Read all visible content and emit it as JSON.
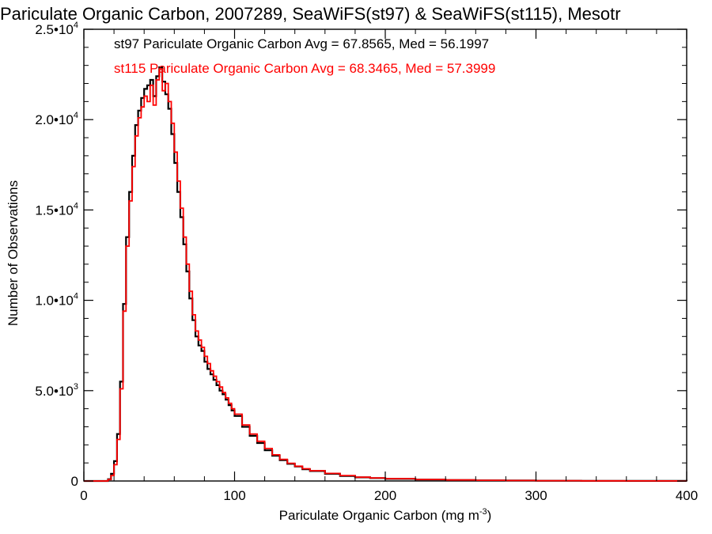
{
  "chart_data": {
    "type": "line",
    "title": "Pariculate Organic Carbon, 2007289, SeaWiFS(st97) & SeaWiFS(st115), Mesotr",
    "xlabel": "Pariculate Organic Carbon (mg m",
    "xlabel_sup": "-3",
    "xlabel_close": ")",
    "ylabel": "Number of Observations",
    "xlim": [
      0,
      400
    ],
    "ylim": [
      0,
      25000
    ],
    "x_ticks": [
      {
        "value": 0,
        "label": "0"
      },
      {
        "value": 100,
        "label": "100"
      },
      {
        "value": 200,
        "label": "200"
      },
      {
        "value": 300,
        "label": "300"
      },
      {
        "value": 400,
        "label": "400"
      }
    ],
    "y_ticks": [
      {
        "value": 0,
        "mant": "0",
        "exp": ""
      },
      {
        "value": 5000,
        "mant": "5.0•10",
        "exp": "3"
      },
      {
        "value": 10000,
        "mant": "1.0•10",
        "exp": "4"
      },
      {
        "value": 15000,
        "mant": "1.5•10",
        "exp": "4"
      },
      {
        "value": 20000,
        "mant": "2.0•10",
        "exp": "4"
      },
      {
        "value": 25000,
        "mant": "2.5•10",
        "exp": "4"
      }
    ],
    "series": [
      {
        "name": "st97",
        "color": "#000000",
        "legend": "st97 Pariculate Organic Carbon Avg = 67.8565, Med = 56.1997",
        "x": [
          0,
          16,
          18,
          20,
          22,
          24,
          26,
          28,
          30,
          32,
          34,
          36,
          38,
          40,
          42,
          44,
          46,
          48,
          50,
          52,
          54,
          56,
          58,
          60,
          62,
          64,
          66,
          68,
          70,
          72,
          74,
          76,
          78,
          80,
          82,
          84,
          86,
          88,
          90,
          92,
          94,
          96,
          98,
          100,
          105,
          110,
          115,
          120,
          125,
          130,
          135,
          140,
          145,
          150,
          160,
          170,
          180,
          190,
          200,
          220,
          240,
          260,
          280,
          300,
          330,
          360,
          400
        ],
        "values": [
          0,
          100,
          400,
          1100,
          2600,
          5500,
          9800,
          13500,
          16000,
          18000,
          19700,
          20500,
          21200,
          21700,
          21900,
          22200,
          21300,
          22400,
          22900,
          22100,
          21400,
          20600,
          19200,
          17600,
          16000,
          14600,
          13100,
          11600,
          10100,
          8900,
          8000,
          7500,
          7200,
          6600,
          6200,
          5900,
          5600,
          5300,
          5000,
          4800,
          4500,
          4200,
          3900,
          3600,
          3000,
          2500,
          2100,
          1700,
          1400,
          1150,
          950,
          800,
          650,
          550,
          400,
          280,
          200,
          160,
          120,
          80,
          50,
          35,
          25,
          15,
          8,
          4,
          2
        ]
      },
      {
        "name": "st115",
        "color": "#ff0000",
        "legend": "st115 Pariculate Organic Carbon Avg = 68.3465, Med = 57.3999",
        "x": [
          0,
          16,
          18,
          20,
          22,
          24,
          26,
          28,
          30,
          32,
          34,
          36,
          38,
          40,
          42,
          44,
          46,
          48,
          50,
          52,
          54,
          56,
          58,
          60,
          62,
          64,
          66,
          68,
          70,
          72,
          74,
          76,
          78,
          80,
          82,
          84,
          86,
          88,
          90,
          92,
          94,
          96,
          98,
          100,
          105,
          110,
          115,
          120,
          125,
          130,
          135,
          140,
          145,
          150,
          160,
          170,
          180,
          190,
          200,
          220,
          240,
          260,
          280,
          300,
          330,
          360,
          400
        ],
        "values": [
          0,
          80,
          300,
          900,
          2300,
          5100,
          9400,
          13000,
          15500,
          17400,
          19100,
          20100,
          20700,
          21300,
          21000,
          21900,
          20800,
          22200,
          22800,
          21600,
          22000,
          21000,
          19800,
          18200,
          16600,
          15100,
          13500,
          12000,
          10500,
          9200,
          8300,
          7800,
          7400,
          6900,
          6500,
          6100,
          5800,
          5500,
          5200,
          4900,
          4600,
          4300,
          4000,
          3700,
          3100,
          2600,
          2200,
          1800,
          1450,
          1200,
          980,
          820,
          680,
          570,
          420,
          300,
          210,
          170,
          130,
          85,
          55,
          38,
          27,
          17,
          9,
          5,
          2
        ]
      }
    ]
  }
}
